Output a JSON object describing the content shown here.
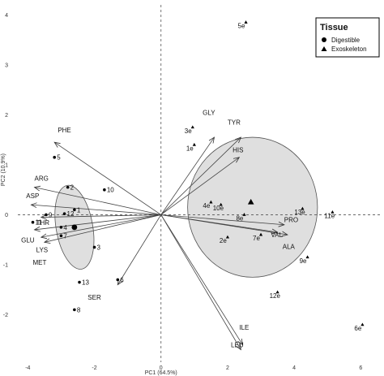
{
  "chart_data": {
    "type": "scatter",
    "xlabel": "PC1 (64.5%)",
    "ylabel": "PC2 (10.9%)",
    "xlim": [
      -4.3,
      6.6
    ],
    "ylim": [
      -2.95,
      4.2
    ],
    "x_ticks": [
      -4,
      -2,
      0,
      2,
      4,
      6
    ],
    "y_ticks": [
      -2,
      -1,
      0,
      1,
      2,
      3,
      4
    ],
    "grid": false,
    "reference_lines": {
      "x": 0,
      "y": 0,
      "style": "dashed"
    },
    "legend": {
      "title": "Tissue",
      "placement": "top-right",
      "entries": [
        {
          "label": "Digestible",
          "shape": "circle"
        },
        {
          "label": "Exoskeleton",
          "shape": "triangle"
        }
      ]
    },
    "series": [
      {
        "name": "Digestible",
        "shape": "circle",
        "points": [
          {
            "label": "1",
            "x": -2.6,
            "y": 0.1
          },
          {
            "label": "2",
            "x": -2.8,
            "y": 0.55
          },
          {
            "label": "3",
            "x": -2.0,
            "y": -0.65
          },
          {
            "label": "4",
            "x": -3.0,
            "y": -0.25
          },
          {
            "label": "5",
            "x": -3.2,
            "y": 1.15
          },
          {
            "label": "6",
            "x": -1.3,
            "y": -1.3
          },
          {
            "label": "7",
            "x": -3.0,
            "y": -0.42
          },
          {
            "label": "8",
            "x": -2.6,
            "y": -1.9
          },
          {
            "label": "9",
            "x": -3.45,
            "y": 0.0
          },
          {
            "label": "10",
            "x": -1.7,
            "y": 0.5
          },
          {
            "label": "11",
            "x": -3.85,
            "y": -0.15
          },
          {
            "label": "12",
            "x": -2.9,
            "y": 0.02
          },
          {
            "label": "13",
            "x": -2.45,
            "y": -1.35
          }
        ]
      },
      {
        "name": "Exoskeleton",
        "shape": "triangle",
        "points": [
          {
            "label": "1e",
            "x": 1.0,
            "y": 1.4
          },
          {
            "label": "2e",
            "x": 2.0,
            "y": -0.45
          },
          {
            "label": "3e",
            "x": 0.95,
            "y": 1.75
          },
          {
            "label": "4e",
            "x": 1.5,
            "y": 0.25
          },
          {
            "label": "5e",
            "x": 2.55,
            "y": 3.85
          },
          {
            "label": "6e",
            "x": 6.05,
            "y": -2.2
          },
          {
            "label": "7e",
            "x": 3.0,
            "y": -0.4
          },
          {
            "label": "8e",
            "x": 2.5,
            "y": 0.0
          },
          {
            "label": "9e",
            "x": 4.4,
            "y": -0.85
          },
          {
            "label": "10e",
            "x": 1.8,
            "y": 0.2
          },
          {
            "label": "11e",
            "x": 5.15,
            "y": 0.05
          },
          {
            "label": "12e",
            "x": 3.5,
            "y": -1.55
          },
          {
            "label": "13e",
            "x": 4.25,
            "y": 0.12
          }
        ]
      }
    ],
    "group_centroids": [
      {
        "group": "Digestible",
        "x": -2.6,
        "y": -0.25
      },
      {
        "group": "Exoskeleton",
        "x": 2.7,
        "y": 0.25
      }
    ],
    "ellipses": [
      {
        "group": "Digestible",
        "cx": -2.6,
        "cy": -0.25,
        "rx": 0.55,
        "ry": 0.85,
        "angle": 10
      },
      {
        "group": "Exoskeleton",
        "cx": 2.75,
        "cy": 0.15,
        "rx": 1.95,
        "ry": 1.4,
        "angle": 0
      }
    ],
    "loadings": [
      {
        "label": "PHE",
        "x": -3.2,
        "y": 1.45
      },
      {
        "label": "ARG",
        "x": -3.8,
        "y": 0.55
      },
      {
        "label": "ASP",
        "x": -3.9,
        "y": 0.2
      },
      {
        "label": "THR",
        "x": -3.6,
        "y": -0.05
      },
      {
        "label": "GLU",
        "x": -3.8,
        "y": -0.3
      },
      {
        "label": "LYS",
        "x": -3.6,
        "y": -0.45
      },
      {
        "label": "MET",
        "x": -3.5,
        "y": -0.55
      },
      {
        "label": "SER",
        "x": -1.3,
        "y": -1.4
      },
      {
        "label": "GLY",
        "x": 1.6,
        "y": 1.55
      },
      {
        "label": "TYR",
        "x": 2.4,
        "y": 1.55
      },
      {
        "label": "HIS",
        "x": 2.35,
        "y": 1.15
      },
      {
        "label": "PRO",
        "x": 3.7,
        "y": -0.2
      },
      {
        "label": "VAL",
        "x": 3.5,
        "y": -0.35
      },
      {
        "label": "ALA",
        "x": 3.8,
        "y": -0.4
      },
      {
        "label": "ILE",
        "x": 2.45,
        "y": -2.6
      },
      {
        "label": "LEU",
        "x": 2.4,
        "y": -2.7
      }
    ],
    "loading_label_positions": {
      "PHE": {
        "x": -3.1,
        "y": 1.65
      },
      "ARG": {
        "x": -3.8,
        "y": 0.68
      },
      "ASP": {
        "x": -4.05,
        "y": 0.33
      },
      "THR": {
        "x": -3.75,
        "y": -0.2
      },
      "GLU": {
        "x": -4.2,
        "y": -0.55
      },
      "LYS": {
        "x": -3.75,
        "y": -0.75
      },
      "MET": {
        "x": -3.85,
        "y": -1.0
      },
      "SER": {
        "x": -2.2,
        "y": -1.7
      },
      "GLY": {
        "x": 1.25,
        "y": 2.0
      },
      "TYR": {
        "x": 2.0,
        "y": 1.8
      },
      "HIS": {
        "x": 2.15,
        "y": 1.25
      },
      "PRO": {
        "x": 3.7,
        "y": -0.15
      },
      "VAL": {
        "x": 3.3,
        "y": -0.45
      },
      "ALA": {
        "x": 3.65,
        "y": -0.68
      },
      "ILE": {
        "x": 2.35,
        "y": -2.3
      },
      "LEU": {
        "x": 2.1,
        "y": -2.65
      }
    }
  }
}
